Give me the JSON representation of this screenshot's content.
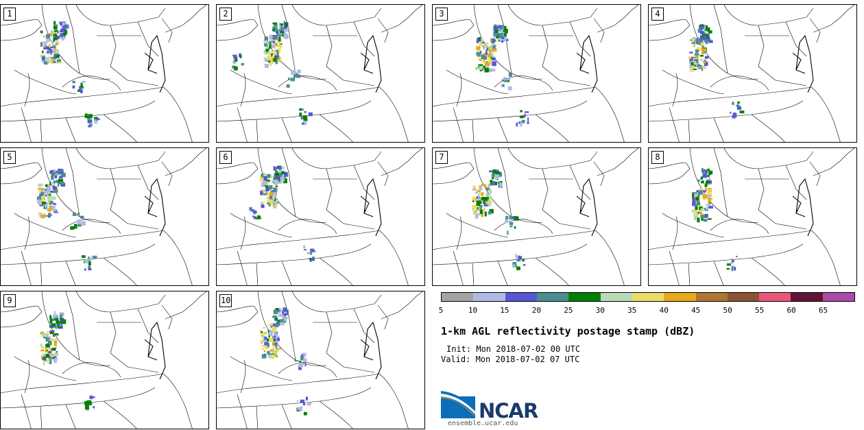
{
  "panels": [
    {
      "label": "1"
    },
    {
      "label": "2"
    },
    {
      "label": "3"
    },
    {
      "label": "4"
    },
    {
      "label": "5"
    },
    {
      "label": "6"
    },
    {
      "label": "7"
    },
    {
      "label": "8"
    },
    {
      "label": "9"
    },
    {
      "label": "10"
    }
  ],
  "colorbar": {
    "colors": [
      "#a3a3a3",
      "#b3b9e6",
      "#5757d4",
      "#4a8e91",
      "#038003",
      "#b7dbb7",
      "#ecdc6a",
      "#e9a91d",
      "#ae7632",
      "#8b5436",
      "#ea567a",
      "#601537",
      "#a84aa7"
    ],
    "ticks": [
      "5",
      "10",
      "15",
      "20",
      "25",
      "30",
      "35",
      "40",
      "45",
      "50",
      "55",
      "60",
      "65"
    ]
  },
  "title": "1-km AGL reflectivity postage stamp (dBZ)",
  "init": "Init: Mon 2018-07-02 00 UTC",
  "valid": "Valid: Mon 2018-07-02 07 UTC",
  "logo": {
    "name": "NCAR",
    "url": "ensemble.ucar.edu"
  }
}
